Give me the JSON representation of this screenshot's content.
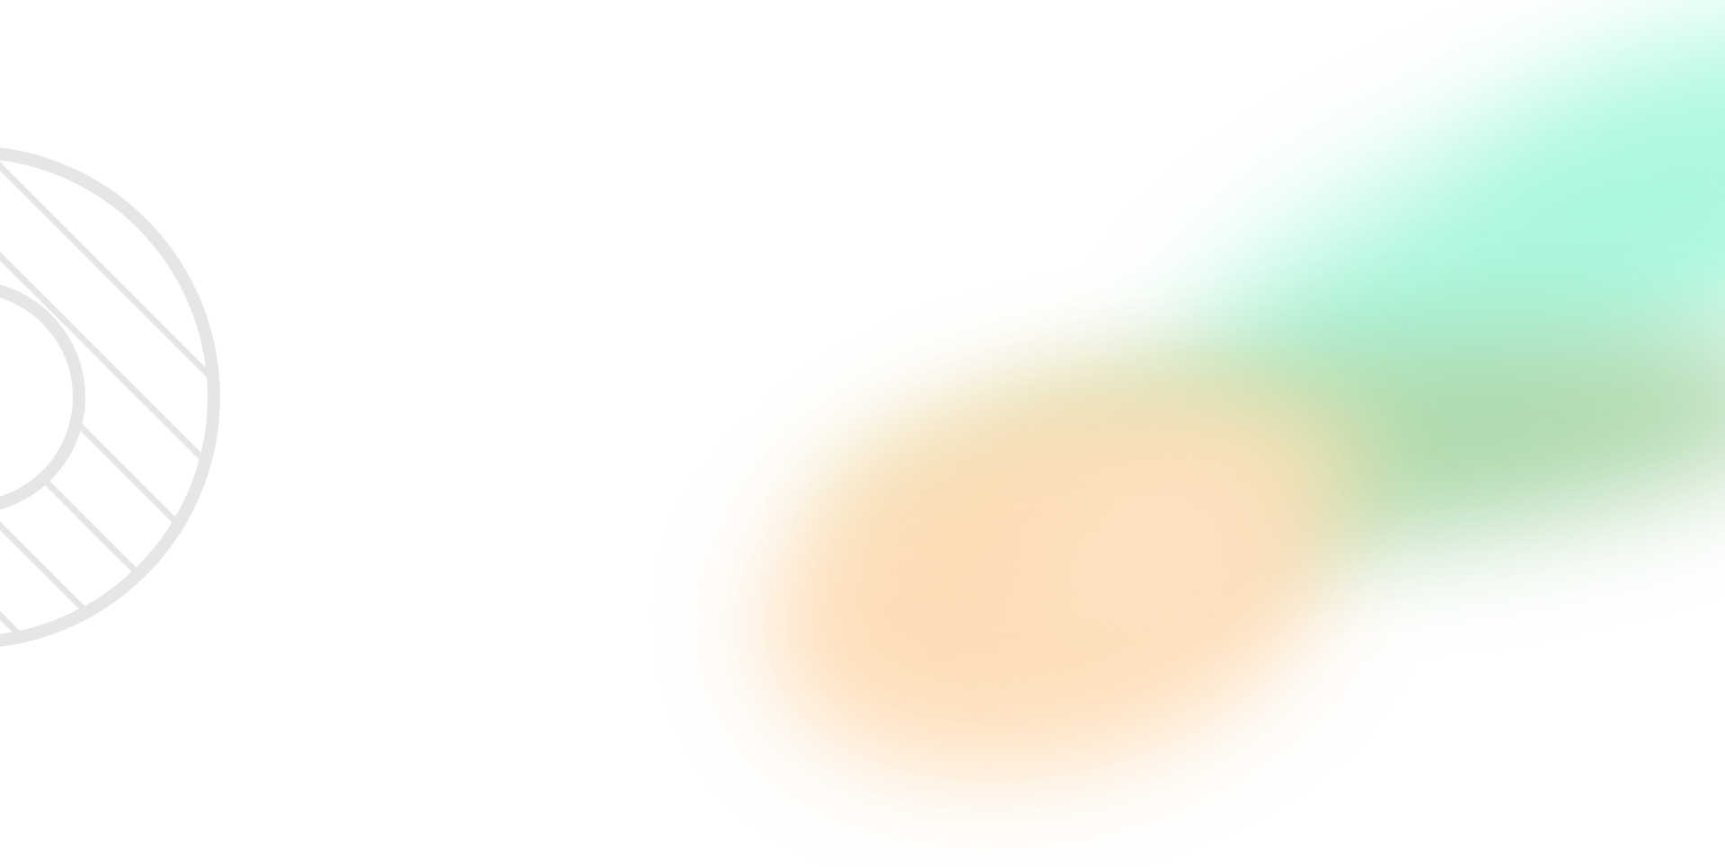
{
  "page": {
    "background_color": "#ffffff"
  },
  "decorations": {
    "ring_icon": "hatched-ring-icon",
    "ring_color": "#e6e6e6",
    "gradient_colors": [
      "#fedcb5",
      "#e9e3b4",
      "#a8d3a3",
      "#a9f7dd"
    ]
  }
}
